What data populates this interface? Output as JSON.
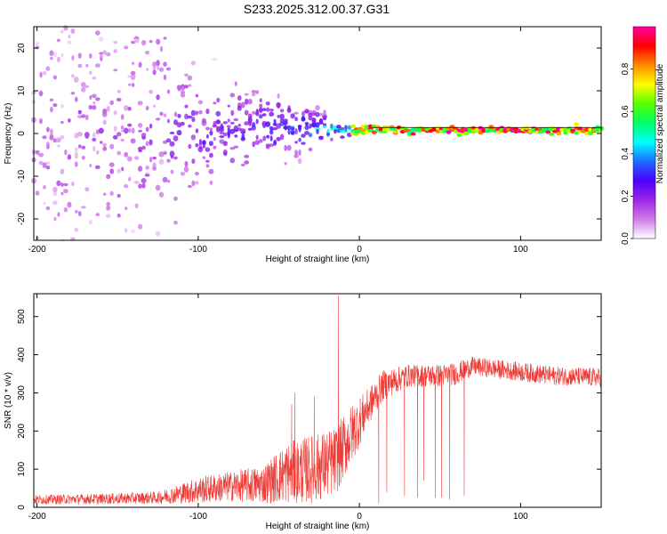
{
  "title": "S233.2025.312.00.37.G31",
  "colors": {
    "snr_line": "#ef3b36",
    "frame": "#000000",
    "background": "#ffffff"
  },
  "chart_data": [
    {
      "type": "heatmap",
      "title": "S233.2025.312.00.37.G31",
      "xlabel": "Height of straight line (km)",
      "ylabel": "Frequency (Hz)",
      "xlim": [
        -202,
        150
      ],
      "ylim": [
        -25,
        25
      ],
      "x_ticks": [
        -200,
        -100,
        0,
        100
      ],
      "x_tick_labels": [
        "-200",
        "-100",
        "0",
        "100"
      ],
      "y_ticks": [
        -20,
        -10,
        0,
        10,
        20
      ],
      "y_tick_labels": [
        "-20",
        "-10",
        "0",
        "10",
        "20"
      ],
      "colorbar": {
        "label": "Normalized spectral amplitude",
        "range": [
          0,
          1
        ],
        "ticks": [
          0.0,
          0.2,
          0.4,
          0.6,
          0.8
        ],
        "tick_labels": [
          "0.0",
          "0.2",
          "0.4",
          "0.6",
          "0.8"
        ],
        "colormap": [
          "#ffffff",
          "#d27be9",
          "#9c27e6",
          "#4b00ff",
          "#1e6bff",
          "#00ffff",
          "#00ff66",
          "#55ff00",
          "#ffff00",
          "#ff8c00",
          "#ff0000",
          "#ff00a0"
        ]
      },
      "trend": [
        {
          "height_km": -200,
          "freq_spread_hz": 25,
          "amplitude": 0.15
        },
        {
          "height_km": -130,
          "freq_spread_hz": 22,
          "amplitude": 0.2
        },
        {
          "height_km": -100,
          "freq_spread_hz": 8,
          "amplitude": 0.25
        },
        {
          "height_km": -60,
          "freq_spread_hz": 6,
          "amplitude": 0.3
        },
        {
          "height_km": -40,
          "freq_spread_hz": 4,
          "amplitude": 0.35
        },
        {
          "height_km": -15,
          "freq_spread_hz": 1.5,
          "amplitude": 0.5
        },
        {
          "height_km": 0,
          "freq_spread_hz": 0.8,
          "amplitude": 0.8
        },
        {
          "height_km": 50,
          "freq_spread_hz": 0.5,
          "amplitude": 0.95
        },
        {
          "height_km": 100,
          "freq_spread_hz": 0.5,
          "amplitude": 0.95
        },
        {
          "height_km": 150,
          "freq_spread_hz": 0.6,
          "amplitude": 0.9
        }
      ],
      "ridge_freq_hz": 0.8
    },
    {
      "type": "line",
      "xlabel": "Height of straight line (km)",
      "ylabel": "SNR (10 * v/v)",
      "xlim": [
        -202,
        150
      ],
      "ylim": [
        0,
        560
      ],
      "x_ticks": [
        -200,
        -100,
        0,
        100
      ],
      "x_tick_labels": [
        "-200",
        "-100",
        "0",
        "100"
      ],
      "y_ticks": [
        0,
        100,
        200,
        300,
        400,
        500
      ],
      "y_tick_labels": [
        "0",
        "100",
        "200",
        "300",
        "400",
        "500"
      ],
      "series": [
        {
          "name": "SNR",
          "envelope": [
            {
              "x": -202,
              "mean": 20,
              "noise": 12
            },
            {
              "x": -160,
              "mean": 22,
              "noise": 14
            },
            {
              "x": -125,
              "mean": 25,
              "noise": 16
            },
            {
              "x": -100,
              "mean": 45,
              "noise": 35
            },
            {
              "x": -80,
              "mean": 55,
              "noise": 40
            },
            {
              "x": -60,
              "mean": 60,
              "noise": 50
            },
            {
              "x": -45,
              "mean": 90,
              "noise": 80
            },
            {
              "x": -30,
              "mean": 100,
              "noise": 90
            },
            {
              "x": -15,
              "mean": 120,
              "noise": 90
            },
            {
              "x": -5,
              "mean": 190,
              "noise": 80
            },
            {
              "x": 5,
              "mean": 260,
              "noise": 50
            },
            {
              "x": 15,
              "mean": 320,
              "noise": 40
            },
            {
              "x": 30,
              "mean": 345,
              "noise": 30
            },
            {
              "x": 50,
              "mean": 345,
              "noise": 30
            },
            {
              "x": 60,
              "mean": 350,
              "noise": 30
            },
            {
              "x": 70,
              "mean": 370,
              "noise": 25
            },
            {
              "x": 90,
              "mean": 360,
              "noise": 25
            },
            {
              "x": 120,
              "mean": 345,
              "noise": 25
            },
            {
              "x": 150,
              "mean": 340,
              "noise": 25
            }
          ],
          "spikes": [
            {
              "x": -13,
              "y": 555
            },
            {
              "x": -40,
              "y": 300
            },
            {
              "x": -42,
              "y": 270
            },
            {
              "x": -28,
              "y": 290
            }
          ],
          "dropouts": [
            {
              "x": 12,
              "y": 10
            },
            {
              "x": 17,
              "y": 40
            },
            {
              "x": 28,
              "y": 30
            },
            {
              "x": 36,
              "y": 25
            },
            {
              "x": 40,
              "y": 70
            },
            {
              "x": 47,
              "y": 25
            },
            {
              "x": 51,
              "y": 25
            },
            {
              "x": 56,
              "y": 20
            },
            {
              "x": 65,
              "y": 30
            }
          ]
        }
      ]
    }
  ]
}
